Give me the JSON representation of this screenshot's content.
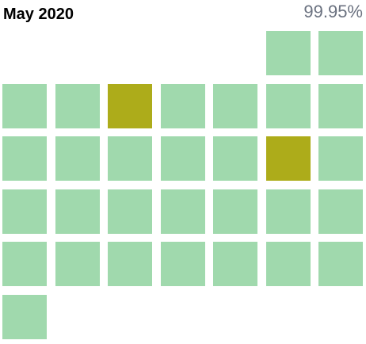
{
  "header": {
    "title": "May 2020",
    "uptime": "99.95%"
  },
  "colors": {
    "operational": "#a0d9ad",
    "degraded": "#adac1a"
  },
  "calendar": {
    "leading_empty_days": 5,
    "days": [
      {
        "day": 1,
        "status": "operational"
      },
      {
        "day": 2,
        "status": "operational"
      },
      {
        "day": 3,
        "status": "operational"
      },
      {
        "day": 4,
        "status": "operational"
      },
      {
        "day": 5,
        "status": "degraded"
      },
      {
        "day": 6,
        "status": "operational"
      },
      {
        "day": 7,
        "status": "operational"
      },
      {
        "day": 8,
        "status": "operational"
      },
      {
        "day": 9,
        "status": "operational"
      },
      {
        "day": 10,
        "status": "operational"
      },
      {
        "day": 11,
        "status": "operational"
      },
      {
        "day": 12,
        "status": "operational"
      },
      {
        "day": 13,
        "status": "operational"
      },
      {
        "day": 14,
        "status": "operational"
      },
      {
        "day": 15,
        "status": "degraded"
      },
      {
        "day": 16,
        "status": "operational"
      },
      {
        "day": 17,
        "status": "operational"
      },
      {
        "day": 18,
        "status": "operational"
      },
      {
        "day": 19,
        "status": "operational"
      },
      {
        "day": 20,
        "status": "operational"
      },
      {
        "day": 21,
        "status": "operational"
      },
      {
        "day": 22,
        "status": "operational"
      },
      {
        "day": 23,
        "status": "operational"
      },
      {
        "day": 24,
        "status": "operational"
      },
      {
        "day": 25,
        "status": "operational"
      },
      {
        "day": 26,
        "status": "operational"
      },
      {
        "day": 27,
        "status": "operational"
      },
      {
        "day": 28,
        "status": "operational"
      },
      {
        "day": 29,
        "status": "operational"
      },
      {
        "day": 30,
        "status": "operational"
      },
      {
        "day": 31,
        "status": "operational"
      }
    ]
  }
}
